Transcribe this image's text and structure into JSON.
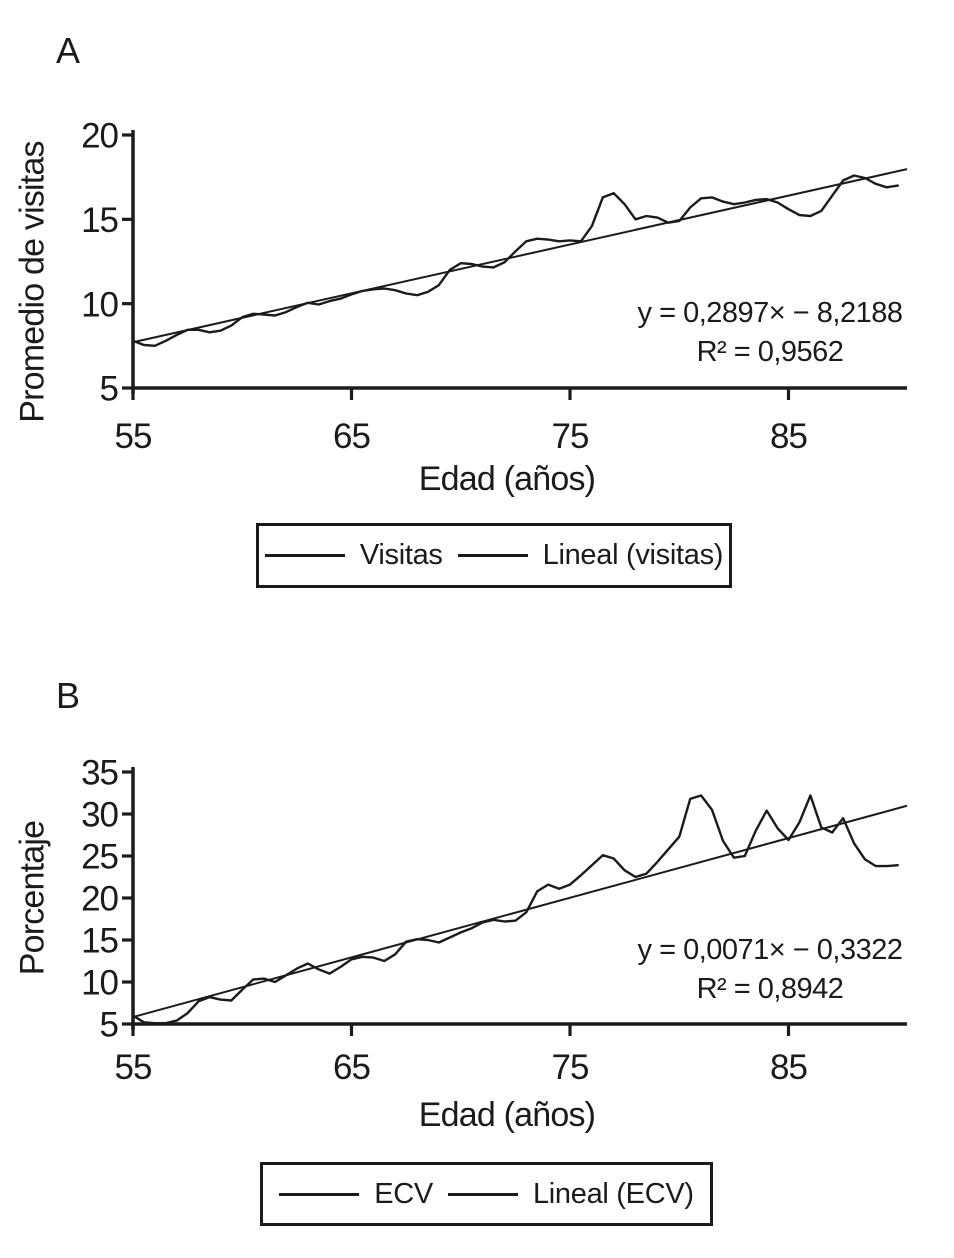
{
  "figure": {
    "background_color": "#ffffff",
    "ink_color": "#1b1b1b"
  },
  "chart_data": [
    {
      "type": "line",
      "panel_label": "A",
      "ylabel": "Promedio de visitas",
      "xlabel": "Edad (años)",
      "x_ticks": [
        55,
        65,
        75,
        85
      ],
      "y_ticks": [
        5,
        10,
        15,
        20
      ],
      "x_axis_range": [
        55,
        90.4
      ],
      "y_axis_range": [
        5,
        20
      ],
      "grid": false,
      "legend_position": "below-boxed",
      "annotation": {
        "equation": "y = 0,2897× − 8,2188",
        "r_squared": "R² = 0,9562"
      },
      "series": [
        {
          "name": "Visitas",
          "x": [
            55,
            55.5,
            56,
            56.5,
            57,
            57.5,
            58,
            58.5,
            59,
            59.5,
            60,
            60.5,
            61,
            61.5,
            62,
            62.5,
            63,
            63.5,
            64,
            64.5,
            65,
            65.5,
            66,
            66.5,
            67,
            67.5,
            68,
            68.5,
            69,
            69.5,
            70,
            70.5,
            71,
            71.5,
            72,
            72.5,
            73,
            73.5,
            74,
            74.5,
            75,
            75.5,
            76,
            76.5,
            77,
            77.5,
            78,
            78.5,
            79,
            79.5,
            80,
            80.5,
            81,
            81.5,
            82,
            82.5,
            83,
            83.5,
            84,
            84.5,
            85,
            85.5,
            86,
            86.5,
            87,
            87.5,
            88,
            88.5,
            89,
            89.5,
            90
          ],
          "y": [
            7.8,
            7.55,
            7.5,
            7.8,
            8.15,
            8.45,
            8.45,
            8.3,
            8.4,
            8.7,
            9.2,
            9.4,
            9.35,
            9.3,
            9.5,
            9.8,
            10.05,
            9.95,
            10.15,
            10.3,
            10.55,
            10.75,
            10.85,
            10.9,
            10.8,
            10.6,
            10.5,
            10.7,
            11.1,
            12.0,
            12.4,
            12.35,
            12.2,
            12.15,
            12.45,
            13.1,
            13.7,
            13.85,
            13.8,
            13.7,
            13.75,
            13.7,
            14.6,
            16.3,
            16.55,
            15.9,
            15.0,
            15.2,
            15.1,
            14.8,
            14.9,
            15.7,
            16.25,
            16.3,
            16.05,
            15.9,
            16.0,
            16.15,
            16.2,
            16.0,
            15.6,
            15.25,
            15.2,
            15.5,
            16.4,
            17.3,
            17.6,
            17.45,
            17.1,
            16.9,
            17.0
          ]
        }
      ],
      "trend": {
        "name": "Lineal (visitas)",
        "slope_axis_units": 0.2897,
        "intercept_axis_units": -8.2188
      }
    },
    {
      "type": "line",
      "panel_label": "B",
      "ylabel": "Porcentaje",
      "xlabel": "Edad (años)",
      "x_ticks": [
        55,
        65,
        75,
        85
      ],
      "y_ticks": [
        5,
        10,
        15,
        20,
        25,
        30,
        35
      ],
      "x_axis_range": [
        55,
        90.4
      ],
      "y_axis_range": [
        5,
        35
      ],
      "grid": false,
      "legend_position": "below-boxed",
      "annotation": {
        "equation": "y = 0,0071× − 0,3322",
        "r_squared": "R² = 0,8942"
      },
      "series": [
        {
          "name": "ECV",
          "x": [
            55,
            55.5,
            56,
            56.5,
            57,
            57.5,
            58,
            58.5,
            59,
            59.5,
            60,
            60.5,
            61,
            61.5,
            62,
            62.5,
            63,
            63.5,
            64,
            64.5,
            65,
            65.5,
            66,
            66.5,
            67,
            67.5,
            68,
            68.5,
            69,
            69.5,
            70,
            70.5,
            71,
            71.5,
            72,
            72.5,
            73,
            73.5,
            74,
            74.5,
            75,
            75.5,
            76,
            76.5,
            77,
            77.5,
            78,
            78.5,
            79,
            79.5,
            80,
            80.5,
            81,
            81.5,
            82,
            82.5,
            83,
            83.5,
            84,
            84.5,
            85,
            85.5,
            86,
            86.5,
            87,
            87.5,
            88,
            88.5,
            89,
            89.5,
            90
          ],
          "y": [
            6.0,
            5.2,
            5.1,
            5.1,
            5.4,
            6.3,
            7.7,
            8.2,
            7.9,
            7.8,
            9.1,
            10.3,
            10.4,
            10.0,
            10.8,
            11.6,
            12.2,
            11.5,
            11.0,
            11.8,
            12.7,
            13.0,
            12.9,
            12.5,
            13.3,
            14.8,
            15.1,
            15.0,
            14.7,
            15.3,
            15.9,
            16.4,
            17.1,
            17.4,
            17.2,
            17.3,
            18.3,
            20.8,
            21.6,
            21.1,
            21.6,
            22.7,
            23.9,
            25.1,
            24.7,
            23.3,
            22.5,
            22.9,
            24.3,
            25.8,
            27.3,
            31.8,
            32.2,
            30.5,
            26.8,
            24.8,
            25.0,
            28.0,
            30.4,
            28.3,
            26.9,
            29.0,
            32.2,
            28.4,
            27.8,
            29.5,
            26.5,
            24.6,
            23.8,
            23.8,
            23.9
          ]
        }
      ],
      "trend": {
        "name": "Lineal (ECV)",
        "slope_axis_units": 0.71,
        "intercept_axis_units": -33.22
      }
    }
  ]
}
